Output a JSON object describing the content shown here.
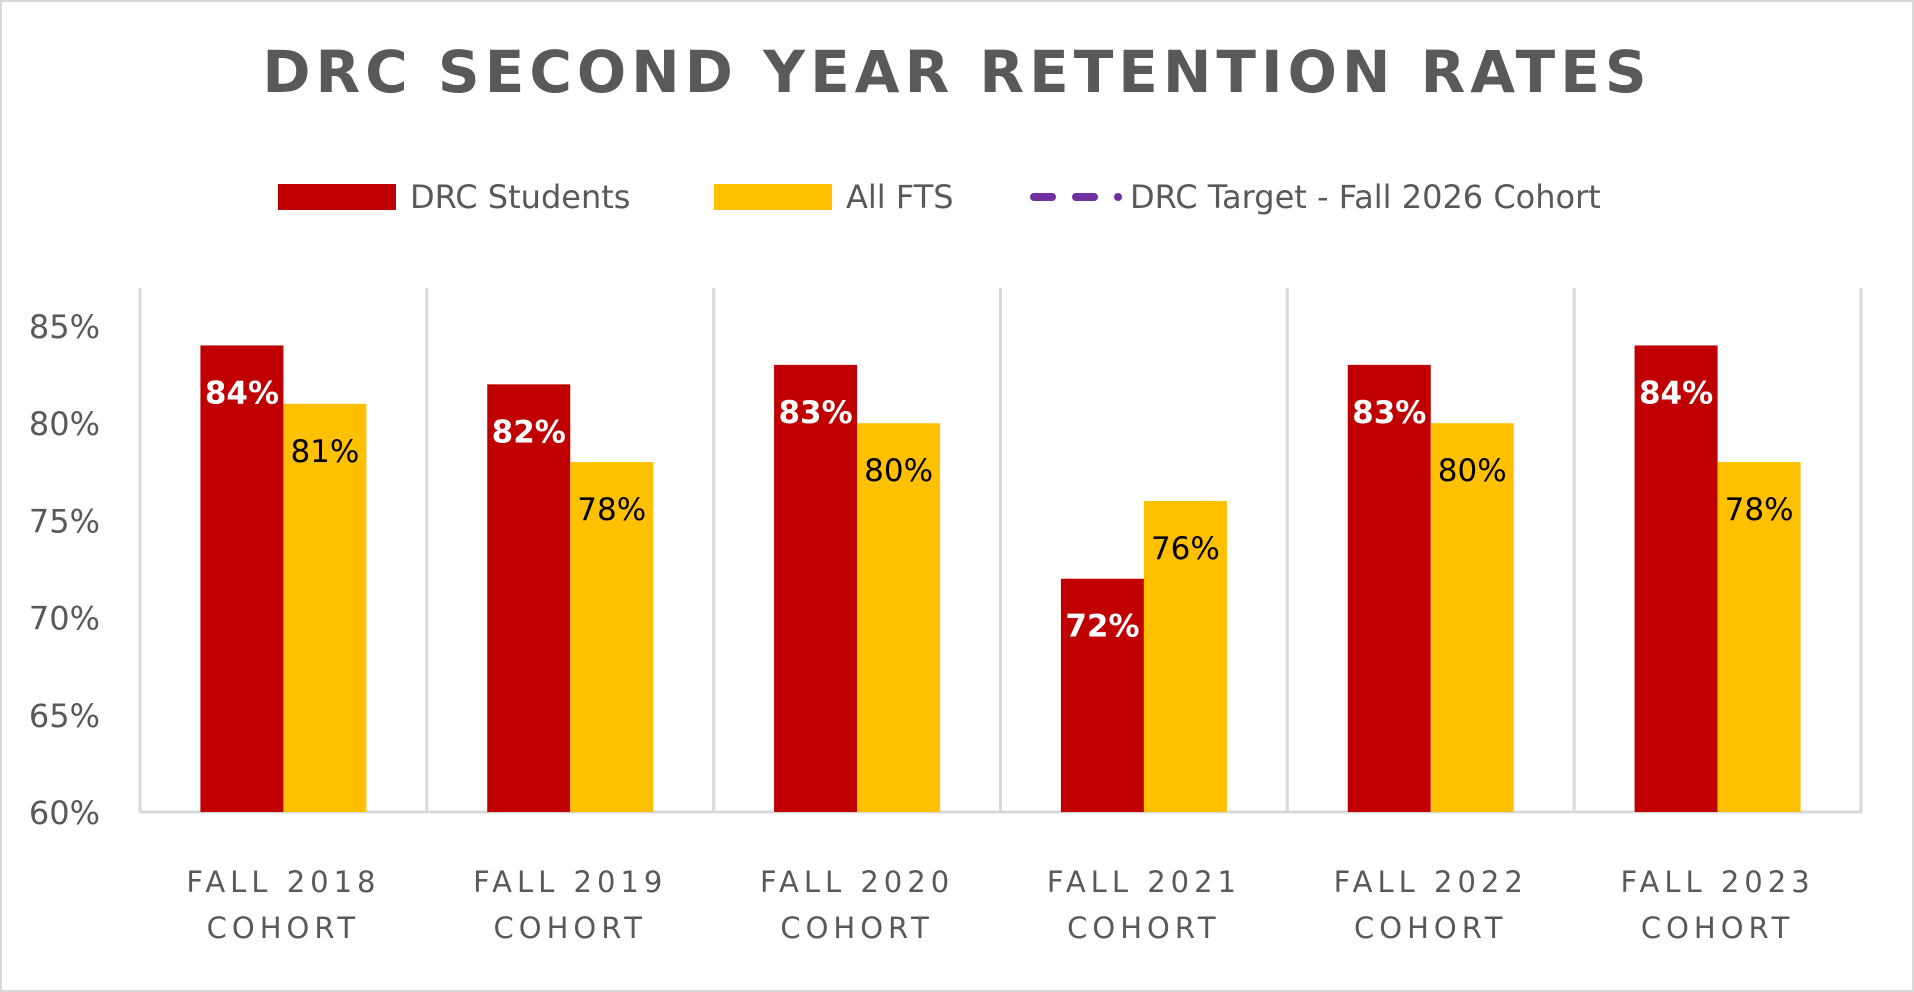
{
  "chart_data": {
    "type": "bar",
    "title": "DRC SECOND YEAR RETENTION RATES",
    "xlabel": "",
    "ylabel": "",
    "ylim": [
      60,
      85
    ],
    "yticks": [
      "60%",
      "65%",
      "70%",
      "75%",
      "80%",
      "85%"
    ],
    "ytick_values": [
      60,
      65,
      70,
      75,
      80,
      85
    ],
    "categories": [
      [
        "FALL 2018",
        "COHORT"
      ],
      [
        "FALL 2019",
        "COHORT"
      ],
      [
        "FALL 2020",
        "COHORT"
      ],
      [
        "FALL 2021",
        "COHORT"
      ],
      [
        "FALL 2022",
        "COHORT"
      ],
      [
        "FALL 2023",
        "COHORT"
      ]
    ],
    "series": [
      {
        "name": "DRC Students",
        "color": "#C00000",
        "label_color": "#FFFFFF",
        "values": [
          84,
          82,
          83,
          72,
          83,
          84
        ],
        "labels": [
          "84%",
          "82%",
          "83%",
          "72%",
          "83%",
          "84%"
        ]
      },
      {
        "name": "All FTS",
        "color": "#FFC000",
        "label_color": "#000000",
        "values": [
          81,
          78,
          80,
          76,
          80,
          78
        ],
        "labels": [
          "81%",
          "78%",
          "80%",
          "76%",
          "80%",
          "78%"
        ]
      }
    ],
    "target_series": {
      "name": "DRC Target - Fall 2026 Cohort",
      "color": "#7030A0",
      "style": "dashed"
    },
    "grid": "vertical category separators",
    "legend_position": "top-center"
  }
}
